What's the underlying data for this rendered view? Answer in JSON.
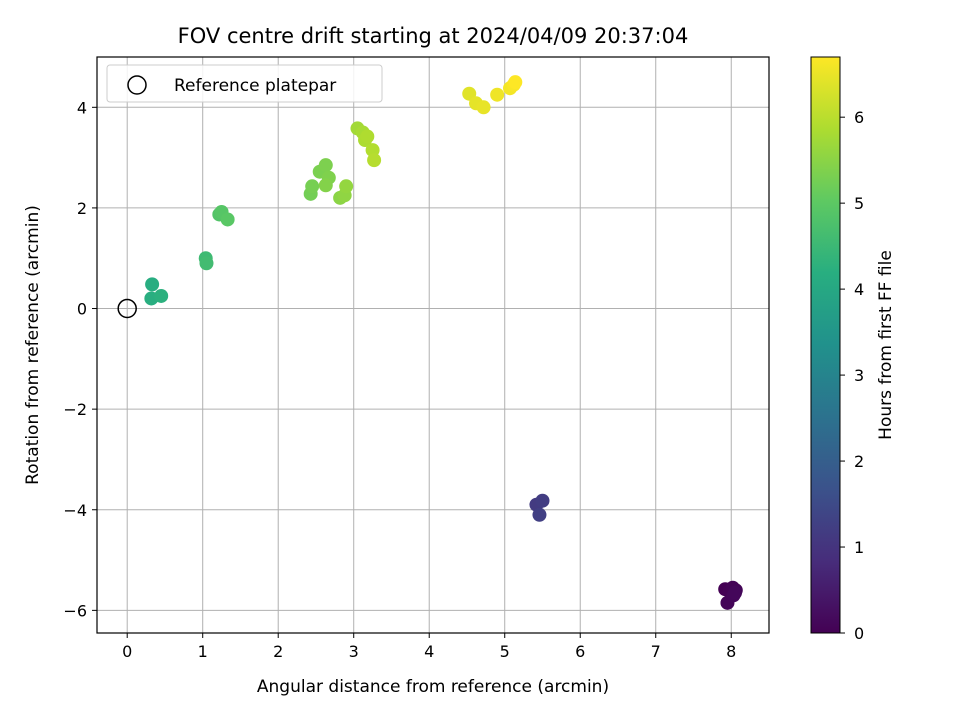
{
  "chart_data": {
    "type": "scatter",
    "title": "FOV centre drift starting at 2024/04/09 20:37:04",
    "xlabel": "Angular distance from reference (arcmin)",
    "ylabel": "Rotation from reference (arcmin)",
    "xlim": [
      -0.4,
      8.5
    ],
    "ylim": [
      -6.45,
      5.0
    ],
    "xticks": [
      0,
      1,
      2,
      3,
      4,
      5,
      6,
      7,
      8
    ],
    "yticks": [
      -6,
      -4,
      -2,
      0,
      2,
      4
    ],
    "grid": true,
    "legend": {
      "placement": "top-left",
      "entries": [
        "Reference platepar"
      ]
    },
    "reference_point": {
      "x": 0,
      "y": 0
    },
    "colorbar": {
      "label": "Hours from first FF file",
      "min": 0,
      "max": 6.7,
      "ticks": [
        0,
        1,
        2,
        3,
        4,
        5,
        6
      ],
      "colormap": "viridis"
    },
    "points": [
      {
        "x": 7.92,
        "y": -5.58,
        "c": 0.0
      },
      {
        "x": 7.98,
        "y": -5.62,
        "c": 0.03
      },
      {
        "x": 8.02,
        "y": -5.55,
        "c": 0.05
      },
      {
        "x": 8.06,
        "y": -5.6,
        "c": 0.07
      },
      {
        "x": 7.95,
        "y": -5.85,
        "c": 0.08
      },
      {
        "x": 8.03,
        "y": -5.7,
        "c": 0.1
      },
      {
        "x": 8.05,
        "y": -5.65,
        "c": 0.12
      },
      {
        "x": 5.42,
        "y": -3.9,
        "c": 1.15
      },
      {
        "x": 5.5,
        "y": -3.82,
        "c": 1.2
      },
      {
        "x": 5.46,
        "y": -4.1,
        "c": 1.25
      },
      {
        "x": 0.33,
        "y": 0.48,
        "c": 4.15
      },
      {
        "x": 0.32,
        "y": 0.2,
        "c": 4.2
      },
      {
        "x": 0.45,
        "y": 0.25,
        "c": 4.25
      },
      {
        "x": 1.04,
        "y": 1.0,
        "c": 4.55
      },
      {
        "x": 1.05,
        "y": 0.9,
        "c": 4.6
      },
      {
        "x": 1.22,
        "y": 1.87,
        "c": 4.85
      },
      {
        "x": 1.25,
        "y": 1.92,
        "c": 4.9
      },
      {
        "x": 1.33,
        "y": 1.77,
        "c": 4.95
      },
      {
        "x": 2.43,
        "y": 2.28,
        "c": 5.25
      },
      {
        "x": 2.45,
        "y": 2.43,
        "c": 5.28
      },
      {
        "x": 2.55,
        "y": 2.72,
        "c": 5.32
      },
      {
        "x": 2.63,
        "y": 2.85,
        "c": 5.35
      },
      {
        "x": 2.67,
        "y": 2.6,
        "c": 5.38
      },
      {
        "x": 2.63,
        "y": 2.45,
        "c": 5.42
      },
      {
        "x": 2.82,
        "y": 2.2,
        "c": 5.5
      },
      {
        "x": 2.88,
        "y": 2.25,
        "c": 5.55
      },
      {
        "x": 2.9,
        "y": 2.43,
        "c": 5.6
      },
      {
        "x": 3.05,
        "y": 3.58,
        "c": 5.75
      },
      {
        "x": 3.12,
        "y": 3.5,
        "c": 5.8
      },
      {
        "x": 3.15,
        "y": 3.35,
        "c": 5.85
      },
      {
        "x": 3.18,
        "y": 3.42,
        "c": 5.88
      },
      {
        "x": 3.25,
        "y": 3.15,
        "c": 5.92
      },
      {
        "x": 3.27,
        "y": 2.95,
        "c": 5.96
      },
      {
        "x": 4.53,
        "y": 4.27,
        "c": 6.4
      },
      {
        "x": 4.62,
        "y": 4.08,
        "c": 6.45
      },
      {
        "x": 4.72,
        "y": 4.0,
        "c": 6.48
      },
      {
        "x": 4.9,
        "y": 4.25,
        "c": 6.55
      },
      {
        "x": 5.07,
        "y": 4.38,
        "c": 6.6
      },
      {
        "x": 5.12,
        "y": 4.45,
        "c": 6.65
      },
      {
        "x": 5.14,
        "y": 4.5,
        "c": 6.7
      }
    ]
  }
}
